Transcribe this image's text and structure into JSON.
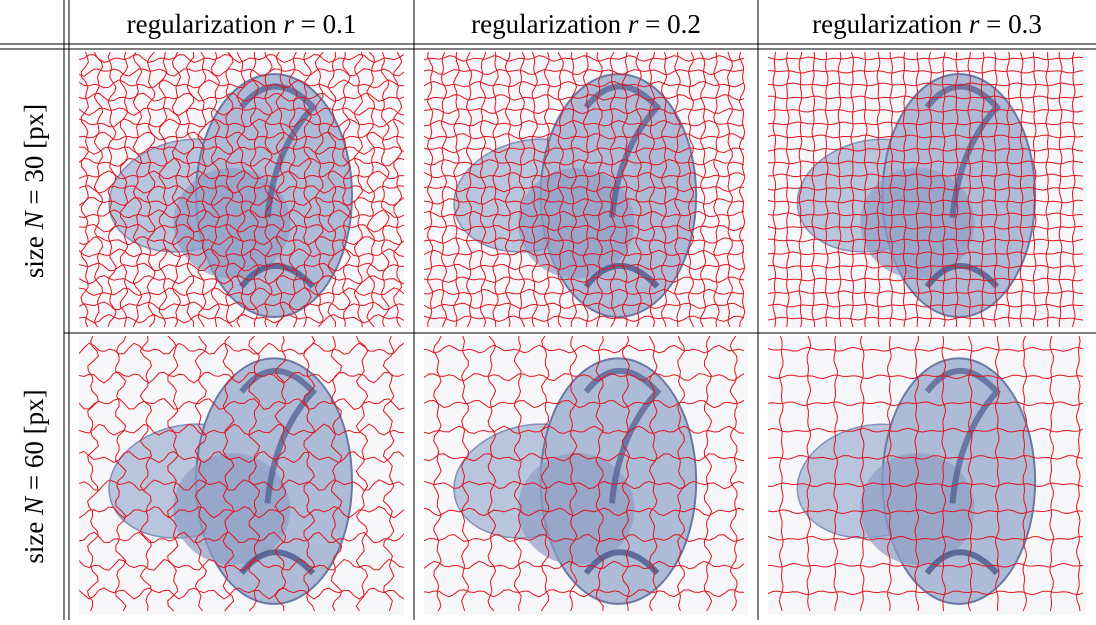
{
  "header": {
    "columns": [
      {
        "label": "regularization",
        "variable": "r",
        "operator": "=",
        "value": "0.1"
      },
      {
        "label": "regularization",
        "variable": "r",
        "operator": "=",
        "value": "0.2"
      },
      {
        "label": "regularization",
        "variable": "r",
        "operator": "=",
        "value": "0.3"
      }
    ]
  },
  "rows": [
    {
      "label": "size",
      "variable": "N",
      "operator": "=",
      "value": "30",
      "unit": "[px]"
    },
    {
      "label": "size",
      "variable": "N",
      "operator": "=",
      "value": "60",
      "unit": "[px]"
    }
  ]
}
